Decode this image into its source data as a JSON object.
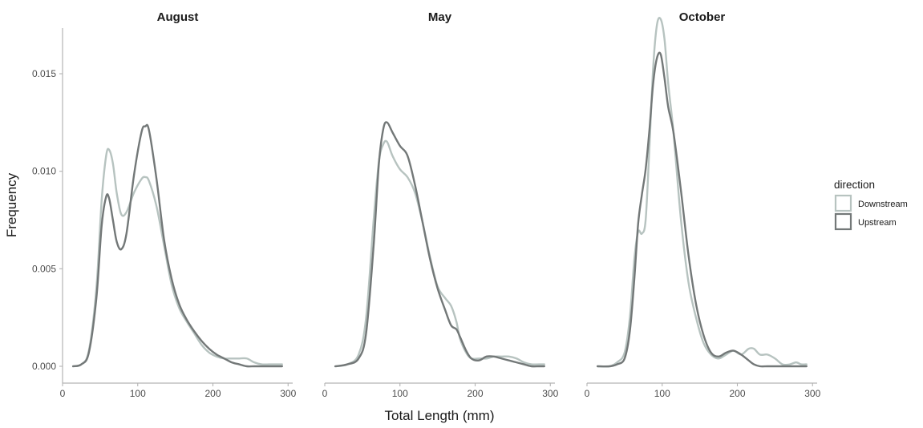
{
  "chart_data": {
    "type": "line",
    "xlabel": "Total Length (mm)",
    "ylabel": "Frequency",
    "xlim": [
      0,
      300
    ],
    "ylim": [
      0,
      0.018
    ],
    "x_ticks": [
      0,
      100,
      200,
      300
    ],
    "y_ticks": [
      0.0,
      0.005,
      0.01,
      0.015
    ],
    "y_tick_labels": [
      "0.000",
      "0.005",
      "0.010",
      "0.015"
    ],
    "grid": false,
    "legend": {
      "title": "direction",
      "position": "right",
      "entries": [
        "Downstream",
        "Upstream"
      ]
    },
    "colors": {
      "Downstream": "#b7c3c0",
      "Upstream": "#737878"
    },
    "facets": [
      {
        "title": "August",
        "series": [
          {
            "name": "Downstream",
            "x": [
              14,
              25,
              35,
              45,
              52,
              58,
              62,
              67,
              72,
              78,
              85,
              95,
              105,
              110,
              115,
              125,
              135,
              145,
              155,
              165,
              175,
              185,
              195,
              205,
              215,
              225,
              235,
              245,
              255,
              265,
              275,
              285,
              292
            ],
            "y": [
              0.0,
              0.0001,
              0.0008,
              0.004,
              0.0085,
              0.0108,
              0.0111,
              0.0104,
              0.0089,
              0.0078,
              0.0079,
              0.0089,
              0.0096,
              0.0097,
              0.0095,
              0.0082,
              0.0062,
              0.0042,
              0.003,
              0.0023,
              0.0017,
              0.0011,
              0.0007,
              0.0005,
              0.0004,
              0.0004,
              0.0004,
              0.0004,
              0.0002,
              0.0001,
              0.0001,
              0.0001,
              0.0001
            ]
          },
          {
            "name": "Upstream",
            "x": [
              14,
              25,
              35,
              45,
              52,
              58,
              62,
              67,
              72,
              78,
              85,
              95,
              105,
              110,
              115,
              125,
              135,
              145,
              155,
              165,
              175,
              185,
              195,
              205,
              215,
              225,
              235,
              245,
              255,
              265,
              275,
              285,
              292
            ],
            "y": [
              0.0,
              0.0001,
              0.0007,
              0.0035,
              0.0072,
              0.0087,
              0.0086,
              0.0075,
              0.0064,
              0.006,
              0.0068,
              0.0098,
              0.012,
              0.0123,
              0.0121,
              0.0096,
              0.0065,
              0.0045,
              0.0032,
              0.0024,
              0.0018,
              0.0013,
              0.0009,
              0.0006,
              0.0004,
              0.0002,
              0.0001,
              0.0,
              0.0,
              0.0,
              0.0,
              0.0,
              0.0
            ]
          }
        ]
      },
      {
        "title": "May",
        "series": [
          {
            "name": "Downstream",
            "x": [
              14,
              30,
              45,
              55,
              65,
              72,
              78,
              83,
              90,
              100,
              110,
              120,
              130,
              140,
              150,
              160,
              168,
              175,
              180,
              188,
              195,
              205,
              215,
              225,
              235,
              245,
              255,
              265,
              275,
              285,
              292
            ],
            "y": [
              0.0,
              0.0001,
              0.0006,
              0.0025,
              0.0075,
              0.0105,
              0.0114,
              0.0115,
              0.0108,
              0.0101,
              0.0097,
              0.0089,
              0.0074,
              0.0056,
              0.0041,
              0.0035,
              0.0031,
              0.0023,
              0.0014,
              0.0007,
              0.0004,
              0.0004,
              0.0004,
              0.0005,
              0.0005,
              0.0005,
              0.0004,
              0.0002,
              0.0001,
              0.0001,
              0.0001
            ]
          },
          {
            "name": "Upstream",
            "x": [
              14,
              30,
              45,
              55,
              65,
              72,
              78,
              83,
              90,
              100,
              110,
              120,
              130,
              140,
              150,
              160,
              168,
              175,
              180,
              188,
              195,
              205,
              215,
              225,
              235,
              245,
              255,
              265,
              275,
              285,
              292
            ],
            "y": [
              0.0,
              0.0001,
              0.0004,
              0.0017,
              0.0062,
              0.0104,
              0.0122,
              0.0125,
              0.012,
              0.0113,
              0.0108,
              0.0093,
              0.0074,
              0.0055,
              0.004,
              0.0029,
              0.0021,
              0.0019,
              0.0015,
              0.0008,
              0.0004,
              0.0003,
              0.0005,
              0.0005,
              0.0004,
              0.0003,
              0.0002,
              0.0001,
              0.0,
              0.0,
              0.0
            ]
          }
        ]
      },
      {
        "title": "October",
        "series": [
          {
            "name": "Downstream",
            "x": [
              14,
              30,
              40,
              50,
              57,
              63,
              68,
              73,
              78,
              83,
              88,
              93,
              98,
              103,
              108,
              115,
              125,
              135,
              145,
              155,
              165,
              175,
              185,
              195,
              205,
              215,
              222,
              230,
              240,
              250,
              260,
              270,
              278,
              285,
              292
            ],
            "y": [
              0.0,
              0.0,
              0.0002,
              0.0007,
              0.0025,
              0.0055,
              0.0069,
              0.0068,
              0.0075,
              0.0112,
              0.0153,
              0.0175,
              0.0178,
              0.0168,
              0.0145,
              0.012,
              0.0075,
              0.0043,
              0.0025,
              0.0012,
              0.0006,
              0.0004,
              0.0006,
              0.0008,
              0.0006,
              0.0009,
              0.0009,
              0.0006,
              0.0006,
              0.0004,
              0.0001,
              0.0001,
              0.0002,
              0.0001,
              0.0001
            ]
          },
          {
            "name": "Upstream",
            "x": [
              14,
              30,
              40,
              50,
              57,
              63,
              68,
              73,
              78,
              83,
              88,
              93,
              98,
              103,
              108,
              115,
              125,
              135,
              145,
              155,
              165,
              175,
              185,
              195,
              205,
              215,
              222,
              230,
              240,
              250,
              260,
              270,
              278,
              285,
              292
            ],
            "y": [
              0.0,
              0.0,
              0.0001,
              0.0004,
              0.0018,
              0.0045,
              0.0073,
              0.0088,
              0.0101,
              0.0121,
              0.0145,
              0.0158,
              0.016,
              0.0148,
              0.0133,
              0.012,
              0.009,
              0.0057,
              0.0032,
              0.0016,
              0.0007,
              0.0005,
              0.0007,
              0.0008,
              0.0006,
              0.0003,
              0.0001,
              0.0,
              0.0,
              0.0,
              0.0,
              0.0,
              0.0,
              0.0,
              0.0
            ]
          }
        ]
      }
    ]
  }
}
